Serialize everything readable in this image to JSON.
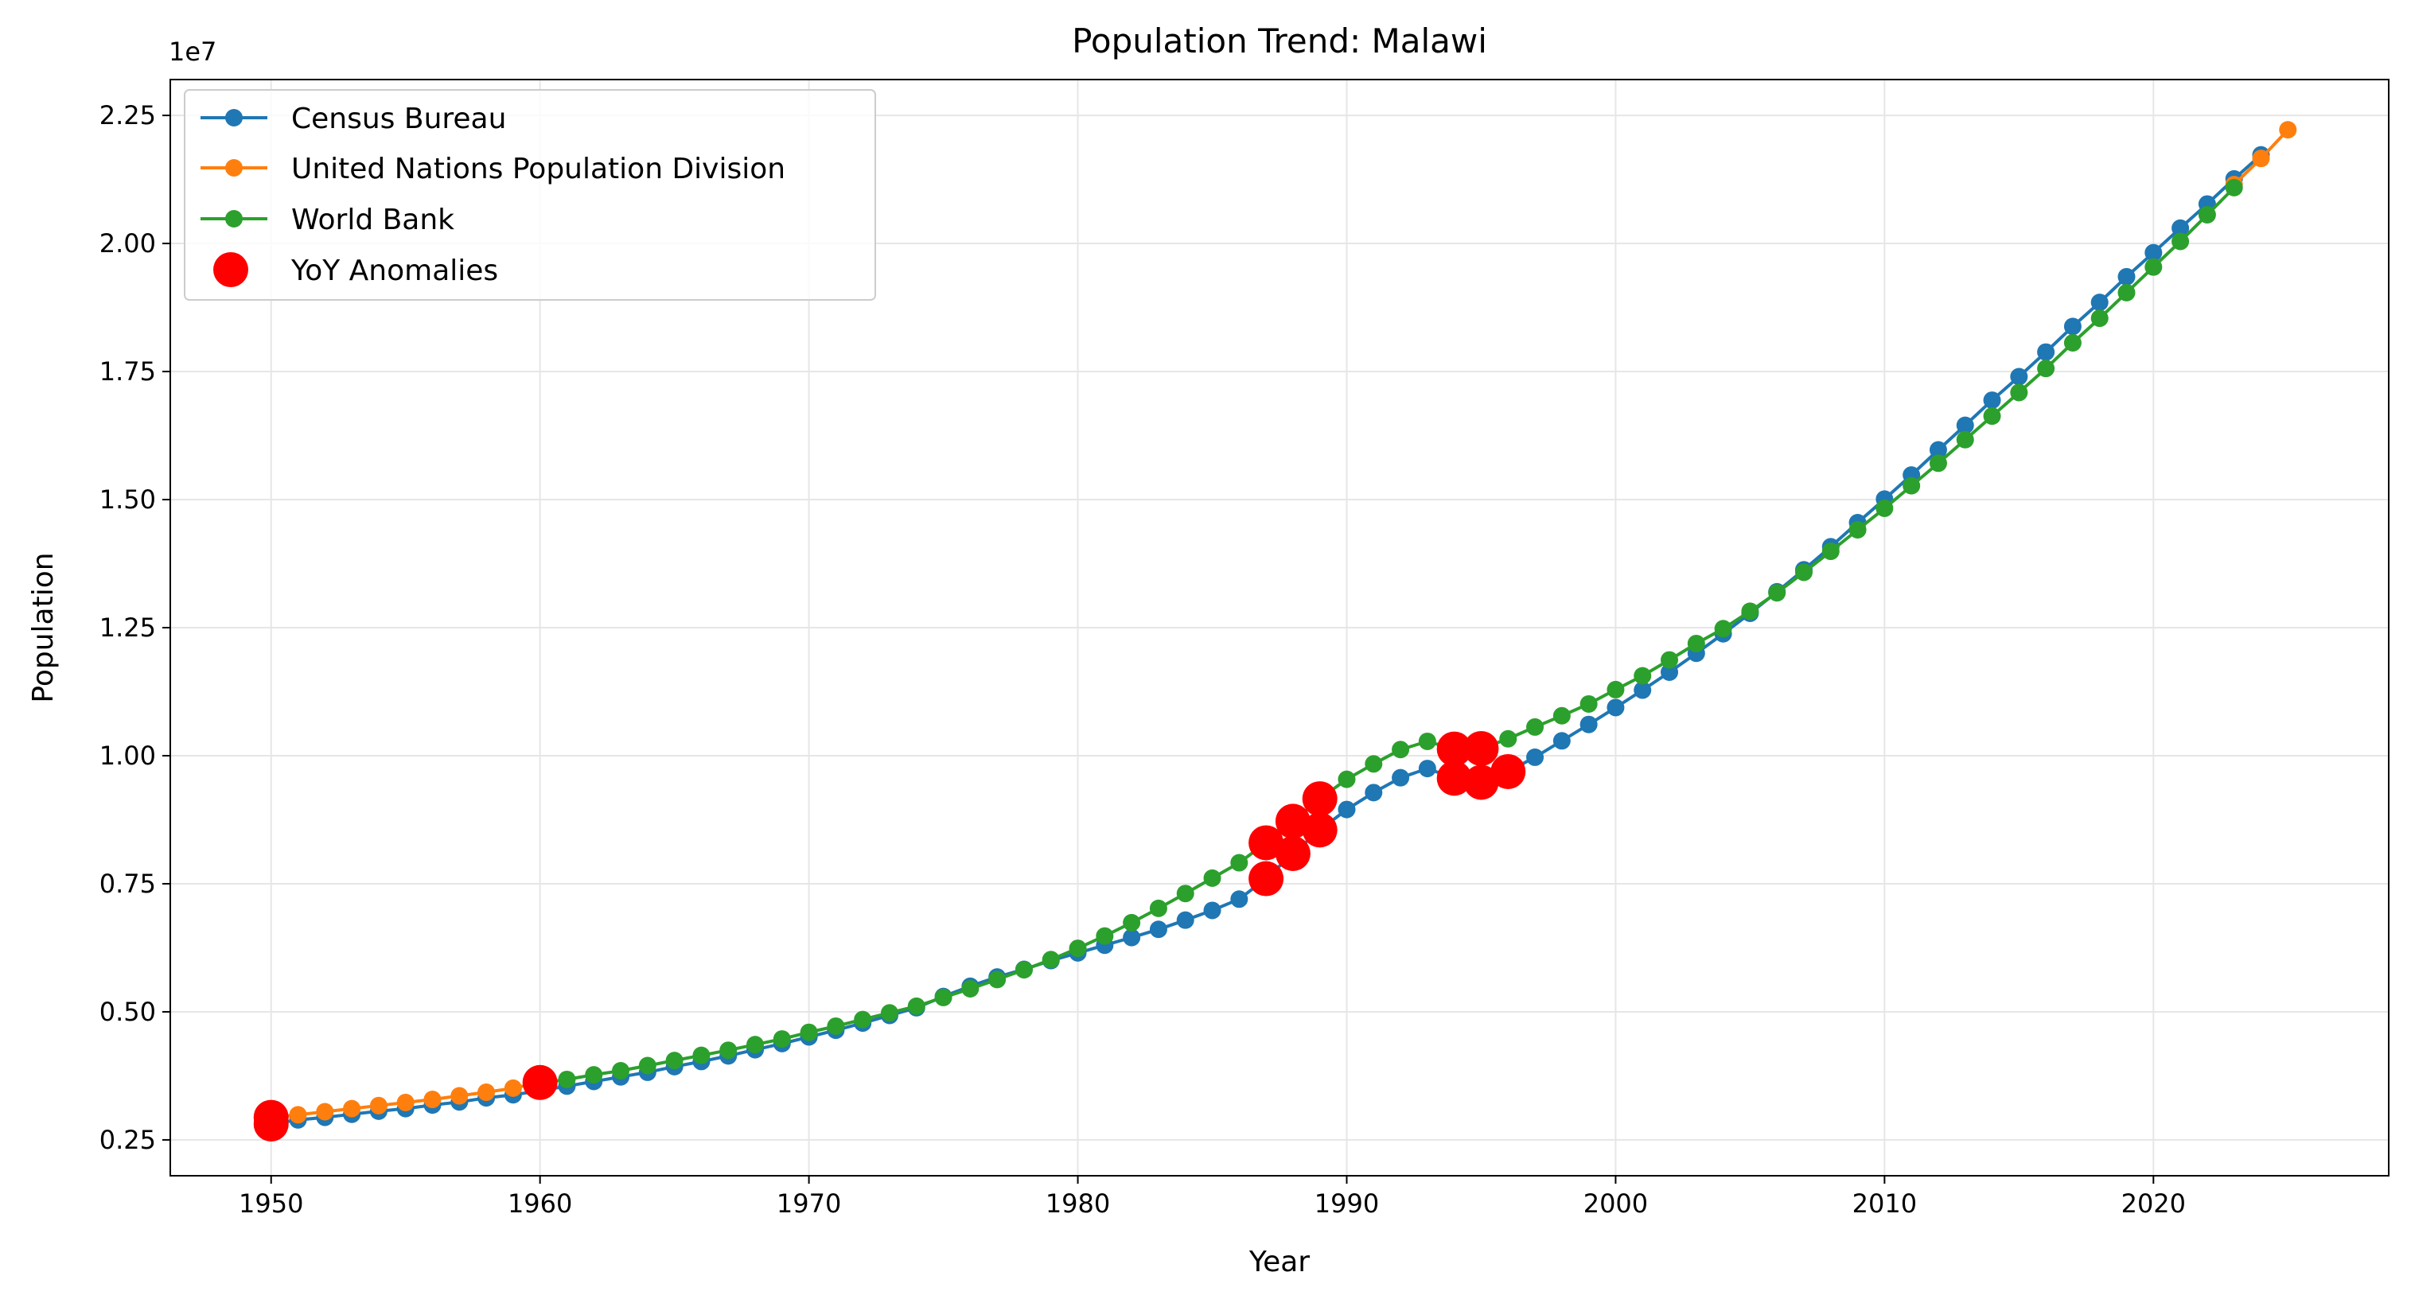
{
  "chart_data": {
    "type": "line",
    "title": "Population Trend: Malawi",
    "xlabel": "Year",
    "ylabel": "Population",
    "y_offset_label": "1e7",
    "y_scale": 10000000,
    "xlim": [
      1946.25,
      2028.75
    ],
    "ylim": [
      1800000,
      23200000
    ],
    "x_ticks": [
      1950,
      1960,
      1970,
      1980,
      1990,
      2000,
      2010,
      2020
    ],
    "x_tick_labels": [
      "1950",
      "1960",
      "1970",
      "1980",
      "1990",
      "2000",
      "2010",
      "2020"
    ],
    "y_ticks": [
      2500000,
      5000000,
      7500000,
      10000000,
      12500000,
      15000000,
      17500000,
      20000000,
      22500000
    ],
    "y_tick_labels": [
      "0.25",
      "0.50",
      "0.75",
      "1.00",
      "1.25",
      "1.50",
      "1.75",
      "2.00",
      "2.25"
    ],
    "grid": true,
    "legend_position": "top-left",
    "series": [
      {
        "name": "Census Bureau",
        "color": "#1f77b4",
        "x": [
          1950,
          1951,
          1952,
          1953,
          1954,
          1955,
          1956,
          1957,
          1958,
          1959,
          1960,
          1961,
          1962,
          1963,
          1964,
          1965,
          1966,
          1967,
          1968,
          1969,
          1970,
          1971,
          1972,
          1973,
          1974,
          1975,
          1976,
          1977,
          1978,
          1979,
          1980,
          1981,
          1982,
          1983,
          1984,
          1985,
          1986,
          1987,
          1988,
          1989,
          1990,
          1991,
          1992,
          1993,
          1994,
          1995,
          1996,
          1997,
          1998,
          1999,
          2000,
          2001,
          2002,
          2003,
          2004,
          2005,
          2006,
          2007,
          2008,
          2009,
          2010,
          2011,
          2012,
          2013,
          2014,
          2015,
          2016,
          2017,
          2018,
          2019,
          2020,
          2021,
          2022,
          2023,
          2024
        ],
        "y": [
          2810000,
          2890000,
          2940000,
          3000000,
          3060000,
          3110000,
          3180000,
          3240000,
          3320000,
          3380000,
          3460000,
          3550000,
          3640000,
          3730000,
          3820000,
          3930000,
          4030000,
          4140000,
          4260000,
          4380000,
          4510000,
          4640000,
          4780000,
          4930000,
          5080000,
          5300000,
          5500000,
          5680000,
          5830000,
          6000000,
          6150000,
          6300000,
          6450000,
          6610000,
          6790000,
          6980000,
          7200000,
          7600000,
          8090000,
          8550000,
          8950000,
          9280000,
          9570000,
          9750000,
          9560000,
          9480000,
          9690000,
          9970000,
          10290000,
          10610000,
          10940000,
          11280000,
          11630000,
          12000000,
          12380000,
          12780000,
          13200000,
          13630000,
          14080000,
          14550000,
          15010000,
          15480000,
          15970000,
          16450000,
          16940000,
          17400000,
          17880000,
          18380000,
          18850000,
          19350000,
          19820000,
          20300000,
          20770000,
          21260000,
          21730000
        ]
      },
      {
        "name": "United Nations Population Division",
        "color": "#ff7f0e",
        "x": [
          1950,
          1951,
          1952,
          1953,
          1954,
          1955,
          1956,
          1957,
          1958,
          1959,
          1960,
          2023,
          2024,
          2025
        ],
        "y": [
          2940000,
          2990000,
          3050000,
          3110000,
          3170000,
          3230000,
          3290000,
          3360000,
          3430000,
          3510000,
          3620000,
          21150000,
          21660000,
          22220000
        ]
      },
      {
        "name": "World Bank",
        "color": "#2ca02c",
        "x": [
          1960,
          1961,
          1962,
          1963,
          1964,
          1965,
          1966,
          1967,
          1968,
          1969,
          1970,
          1971,
          1972,
          1973,
          1974,
          1975,
          1976,
          1977,
          1978,
          1979,
          1980,
          1981,
          1982,
          1983,
          1984,
          1985,
          1986,
          1987,
          1988,
          1989,
          1990,
          1991,
          1992,
          1993,
          1994,
          1995,
          1996,
          1997,
          1998,
          1999,
          2000,
          2001,
          2002,
          2003,
          2004,
          2005,
          2006,
          2007,
          2008,
          2009,
          2010,
          2011,
          2012,
          2013,
          2014,
          2015,
          2016,
          2017,
          2018,
          2019,
          2020,
          2021,
          2022,
          2023
        ],
        "y": [
          3600000,
          3680000,
          3770000,
          3850000,
          3950000,
          4050000,
          4150000,
          4250000,
          4360000,
          4470000,
          4600000,
          4720000,
          4850000,
          4980000,
          5110000,
          5280000,
          5450000,
          5630000,
          5820000,
          6020000,
          6240000,
          6480000,
          6740000,
          7020000,
          7310000,
          7610000,
          7910000,
          8300000,
          8720000,
          9160000,
          9540000,
          9840000,
          10120000,
          10280000,
          10130000,
          10140000,
          10330000,
          10560000,
          10780000,
          11010000,
          11290000,
          11560000,
          11870000,
          12190000,
          12480000,
          12820000,
          13180000,
          13580000,
          13990000,
          14410000,
          14830000,
          15270000,
          15710000,
          16170000,
          16630000,
          17090000,
          17560000,
          18060000,
          18540000,
          19040000,
          19540000,
          20040000,
          20560000,
          21090000
        ]
      }
    ],
    "anomalies": {
      "name": "YoY Anomalies",
      "color": "#ff0000",
      "points": [
        {
          "x": 1950,
          "y": 2810000
        },
        {
          "x": 1950,
          "y": 2940000
        },
        {
          "x": 1960,
          "y": 3620000
        },
        {
          "x": 1987,
          "y": 7600000
        },
        {
          "x": 1987,
          "y": 8300000
        },
        {
          "x": 1988,
          "y": 8090000
        },
        {
          "x": 1988,
          "y": 8720000
        },
        {
          "x": 1989,
          "y": 8550000
        },
        {
          "x": 1989,
          "y": 9160000
        },
        {
          "x": 1994,
          "y": 9560000
        },
        {
          "x": 1994,
          "y": 10130000
        },
        {
          "x": 1995,
          "y": 9480000
        },
        {
          "x": 1995,
          "y": 10140000
        },
        {
          "x": 1996,
          "y": 9690000
        }
      ]
    }
  }
}
